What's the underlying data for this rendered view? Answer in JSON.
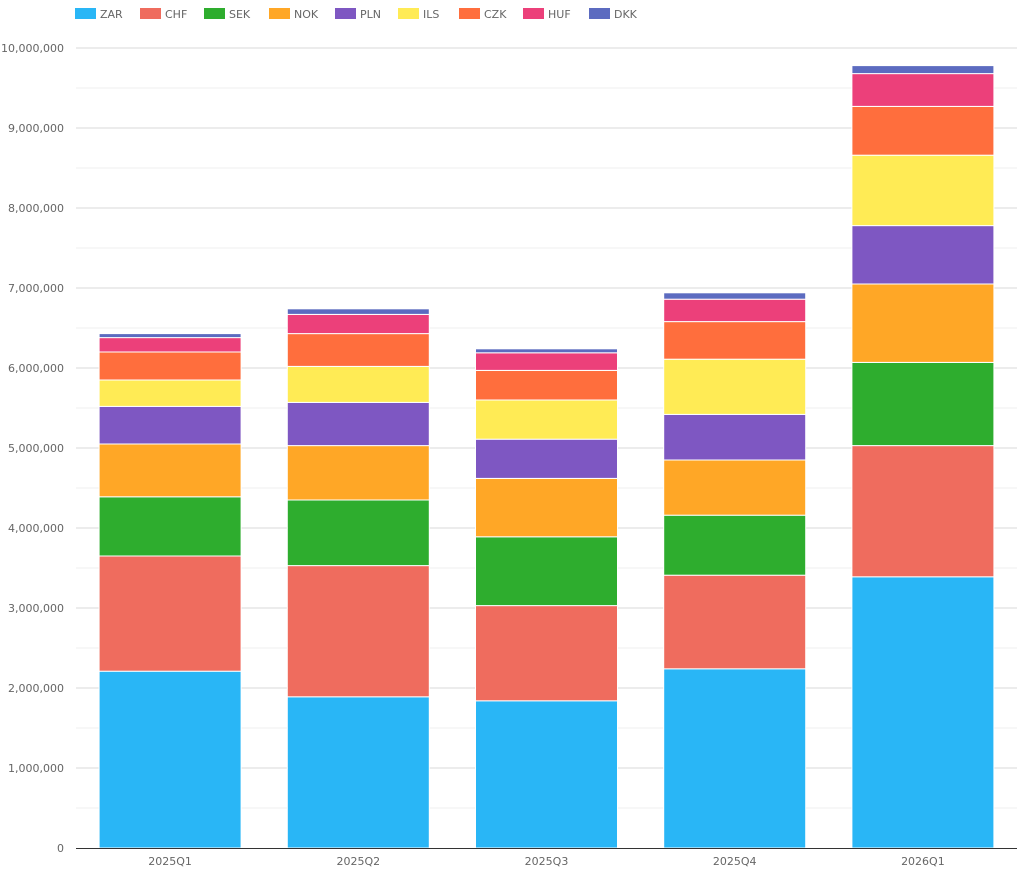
{
  "chart_data": {
    "type": "bar",
    "stacked": true,
    "title": "",
    "xlabel": "",
    "ylabel": "",
    "ylim": [
      0,
      10000000
    ],
    "y_ticks": [
      "0",
      "1,000,000",
      "2,000,000",
      "3,000,000",
      "4,000,000",
      "5,000,000",
      "6,000,000",
      "7,000,000",
      "8,000,000",
      "9,000,000",
      "10,000,000"
    ],
    "y_tick_values": [
      0,
      1000000,
      2000000,
      3000000,
      4000000,
      5000000,
      6000000,
      7000000,
      8000000,
      9000000,
      10000000
    ],
    "grid": true,
    "legend_position": "top-left",
    "categories": [
      "2025Q1",
      "2025Q2",
      "2025Q3",
      "2025Q4",
      "2026Q1"
    ],
    "series": [
      {
        "name": "ZAR",
        "color": "#29B6F6",
        "values": [
          2210000,
          1890000,
          1840000,
          2240000,
          3390000
        ]
      },
      {
        "name": "CHF",
        "color": "#EF6C5E",
        "values": [
          1440000,
          1640000,
          1190000,
          1170000,
          1640000
        ]
      },
      {
        "name": "SEK",
        "color": "#2EAD2E",
        "values": [
          740000,
          820000,
          860000,
          750000,
          1040000
        ]
      },
      {
        "name": "NOK",
        "color": "#FFA726",
        "values": [
          660000,
          680000,
          730000,
          690000,
          980000
        ]
      },
      {
        "name": "PLN",
        "color": "#7E57C2",
        "values": [
          470000,
          540000,
          490000,
          570000,
          730000
        ]
      },
      {
        "name": "ILS",
        "color": "#FFEB55",
        "values": [
          330000,
          450000,
          490000,
          690000,
          880000
        ]
      },
      {
        "name": "CZK",
        "color": "#FF6E3D",
        "values": [
          350000,
          410000,
          370000,
          470000,
          610000
        ]
      },
      {
        "name": "HUF",
        "color": "#EC407A",
        "values": [
          180000,
          240000,
          220000,
          280000,
          410000
        ]
      },
      {
        "name": "DKK",
        "color": "#5C6BC0",
        "values": [
          50000,
          70000,
          50000,
          80000,
          100000
        ]
      }
    ]
  }
}
